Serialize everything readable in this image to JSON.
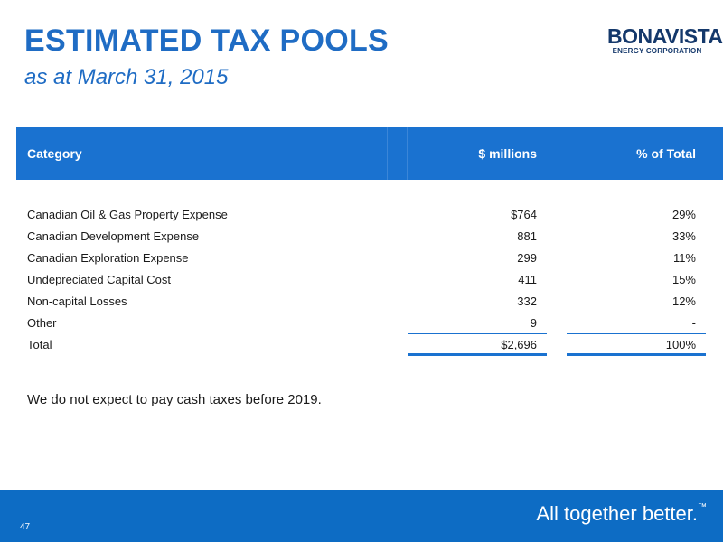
{
  "slide": {
    "title": "ESTIMATED TAX POOLS",
    "subtitle": "as at March 31, 2015"
  },
  "logo": {
    "name": "BONAVISTA",
    "subtitle": "ENERGY CORPORATION"
  },
  "table": {
    "headers": {
      "category": "Category",
      "millions": "$ millions",
      "percent": "% of Total"
    },
    "rows": [
      {
        "category": "Canadian Oil & Gas Property Expense",
        "millions": "$764",
        "percent": "29%"
      },
      {
        "category": "Canadian Development Expense",
        "millions": "881",
        "percent": "33%"
      },
      {
        "category": "Canadian Exploration Expense",
        "millions": "299",
        "percent": "11%"
      },
      {
        "category": "Undepreciated Capital Cost",
        "millions": "411",
        "percent": "15%"
      },
      {
        "category": "Non-capital Losses",
        "millions": "332",
        "percent": "12%"
      },
      {
        "category": "Other",
        "millions": "9",
        "percent": "-"
      }
    ],
    "total": {
      "category": "Total",
      "millions": "$2,696",
      "percent": "100%"
    }
  },
  "note": "We do not expect to pay cash taxes before 2019.",
  "footer": {
    "page_number": "47",
    "tagline": "All together better.",
    "trademark": "™"
  }
}
